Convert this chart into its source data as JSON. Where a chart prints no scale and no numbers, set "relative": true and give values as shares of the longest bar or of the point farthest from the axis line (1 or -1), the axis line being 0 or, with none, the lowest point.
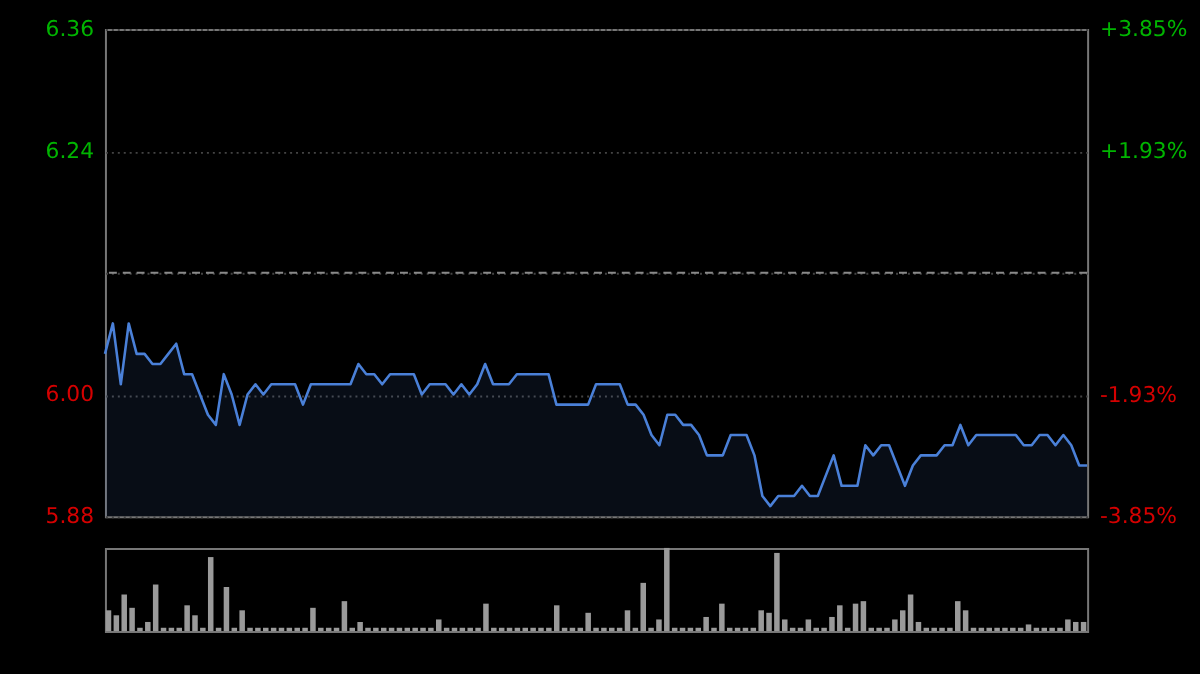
{
  "chart_data": [
    {
      "type": "area",
      "categories": [
        null,
        null,
        null,
        null,
        null,
        null,
        null,
        null,
        null,
        null,
        null,
        null,
        null,
        null,
        null,
        null,
        null,
        null,
        null,
        null,
        null,
        null,
        null,
        null,
        null,
        null,
        null,
        null,
        null,
        null,
        null,
        null,
        null,
        null,
        null,
        null,
        null,
        null,
        null,
        null,
        null,
        null,
        null,
        null,
        null,
        null,
        null,
        null,
        null,
        null,
        null,
        null,
        null,
        null,
        null,
        null,
        null,
        null,
        null,
        null,
        null,
        null,
        null,
        null,
        null,
        null,
        null,
        null,
        null,
        null,
        null,
        null,
        null,
        null,
        null,
        null,
        null,
        null,
        null,
        null,
        null,
        null,
        null,
        null,
        null,
        null,
        null,
        null,
        null,
        null,
        null,
        null,
        null,
        null,
        null,
        null,
        null,
        null,
        null,
        null,
        null,
        null,
        null,
        null,
        null,
        null,
        null,
        null,
        null,
        null,
        null,
        null,
        null,
        null,
        null,
        null,
        null,
        null,
        null,
        null,
        null,
        null,
        null,
        null,
        null
      ],
      "series": [
        {
          "color": "#4a80d8",
          "values": [
            6.04,
            6.07,
            6.01,
            6.07,
            6.04,
            6.04,
            6.03,
            6.03,
            6.04,
            6.05,
            6.02,
            6.02,
            6.0,
            5.98,
            5.97,
            6.02,
            6.0,
            5.97,
            6.0,
            6.01,
            6.0,
            6.01,
            6.01,
            6.01,
            6.01,
            5.99,
            6.01,
            6.01,
            6.01,
            6.01,
            6.01,
            6.01,
            6.03,
            6.02,
            6.02,
            6.01,
            6.02,
            6.02,
            6.02,
            6.02,
            6.0,
            6.01,
            6.01,
            6.01,
            6.0,
            6.01,
            6.0,
            6.01,
            6.03,
            6.01,
            6.01,
            6.01,
            6.02,
            6.02,
            6.02,
            6.02,
            6.02,
            5.99,
            5.99,
            5.99,
            5.99,
            5.99,
            6.01,
            6.01,
            6.01,
            6.01,
            5.99,
            5.99,
            5.98,
            5.96,
            5.95,
            5.98,
            5.98,
            5.97,
            5.97,
            5.96,
            5.94,
            5.94,
            5.94,
            5.96,
            5.96,
            5.96,
            5.94,
            5.9,
            5.89,
            5.9,
            5.9,
            5.9,
            5.91,
            5.9,
            5.9,
            5.92,
            5.94,
            5.91,
            5.91,
            5.91,
            5.95,
            5.94,
            5.95,
            5.95,
            5.93,
            5.91,
            5.93,
            5.94,
            5.94,
            5.94,
            5.95,
            5.95,
            5.97,
            5.95,
            5.96,
            5.96,
            5.96,
            5.96,
            5.96,
            5.96,
            5.95,
            5.95,
            5.96,
            5.96,
            5.95,
            5.96,
            5.95,
            5.93,
            5.93
          ]
        }
      ],
      "ylim": [
        5.88,
        6.36
      ],
      "yticks": [
        6.36,
        6.24,
        {
          "value": 6.12,
          "label": null
        },
        {
          "value": 6.0,
          "label": "6.00"
        },
        5.88
      ],
      "y2lim": [
        -3.85,
        3.85
      ],
      "y2ticks": [
        {
          "value": 3.85,
          "label": "+3.85%"
        },
        {
          "value": 1.93,
          "label": "+1.93%"
        },
        {
          "value": -1.93,
          "label": "-1.93%"
        },
        {
          "value": -3.85,
          "label": "-3.85%"
        }
      ],
      "ref_lines": [
        {
          "axis": "y",
          "value": 6.12,
          "color": "#8a8a8a",
          "line_style": "dashed"
        }
      ],
      "grid": "y",
      "tick_labels": "y"
    },
    {
      "type": "bar",
      "relative": true,
      "categories": [
        null,
        null,
        null,
        null,
        null,
        null,
        null,
        null,
        null,
        null,
        null,
        null,
        null,
        null,
        null,
        null,
        null,
        null,
        null,
        null,
        null,
        null,
        null,
        null,
        null,
        null,
        null,
        null,
        null,
        null,
        null,
        null,
        null,
        null,
        null,
        null,
        null,
        null,
        null,
        null,
        null,
        null,
        null,
        null,
        null,
        null,
        null,
        null,
        null,
        null,
        null,
        null,
        null,
        null,
        null,
        null,
        null,
        null,
        null,
        null,
        null,
        null,
        null,
        null,
        null,
        null,
        null,
        null,
        null,
        null,
        null,
        null,
        null,
        null,
        null,
        null,
        null,
        null,
        null,
        null,
        null,
        null,
        null,
        null,
        null,
        null,
        null,
        null,
        null,
        null,
        null,
        null,
        null,
        null,
        null,
        null,
        null,
        null,
        null,
        null,
        null,
        null,
        null,
        null,
        null,
        null,
        null,
        null,
        null,
        null,
        null,
        null,
        null,
        null,
        null,
        null,
        null,
        null,
        null,
        null,
        null,
        null,
        null,
        null,
        null
      ],
      "color": "#9a9a9a",
      "values": [
        0.25,
        0.19,
        0.44,
        0.28,
        0.04,
        0.11,
        0.56,
        0.04,
        0.04,
        0.04,
        0.31,
        0.19,
        0.04,
        0.89,
        0.04,
        0.53,
        0.04,
        0.25,
        0.04,
        0.04,
        0.04,
        0.04,
        0.04,
        0.04,
        0.04,
        0.04,
        0.28,
        0.04,
        0.04,
        0.04,
        0.36,
        0.04,
        0.11,
        0.04,
        0.04,
        0.04,
        0.04,
        0.04,
        0.04,
        0.04,
        0.04,
        0.04,
        0.14,
        0.04,
        0.04,
        0.04,
        0.04,
        0.04,
        0.33,
        0.04,
        0.04,
        0.04,
        0.04,
        0.04,
        0.04,
        0.04,
        0.04,
        0.31,
        0.04,
        0.04,
        0.04,
        0.22,
        0.04,
        0.04,
        0.04,
        0.04,
        0.25,
        0.04,
        0.58,
        0.04,
        0.14,
        1,
        0.04,
        0.04,
        0.04,
        0.04,
        0.17,
        0.04,
        0.33,
        0.04,
        0.04,
        0.04,
        0.04,
        0.25,
        0.22,
        0.94,
        0.14,
        0.04,
        0.04,
        0.14,
        0.04,
        0.04,
        0.17,
        0.31,
        0.04,
        0.33,
        0.36,
        0.04,
        0.04,
        0.04,
        0.14,
        0.25,
        0.44,
        0.11,
        0.04,
        0.04,
        0.04,
        0.04,
        0.36,
        0.25,
        0.04,
        0.04,
        0.04,
        0.04,
        0.04,
        0.04,
        0.04,
        0.08,
        0.04,
        0.04,
        0.04,
        0.04,
        0.14,
        0.11,
        0.11
      ]
    }
  ]
}
